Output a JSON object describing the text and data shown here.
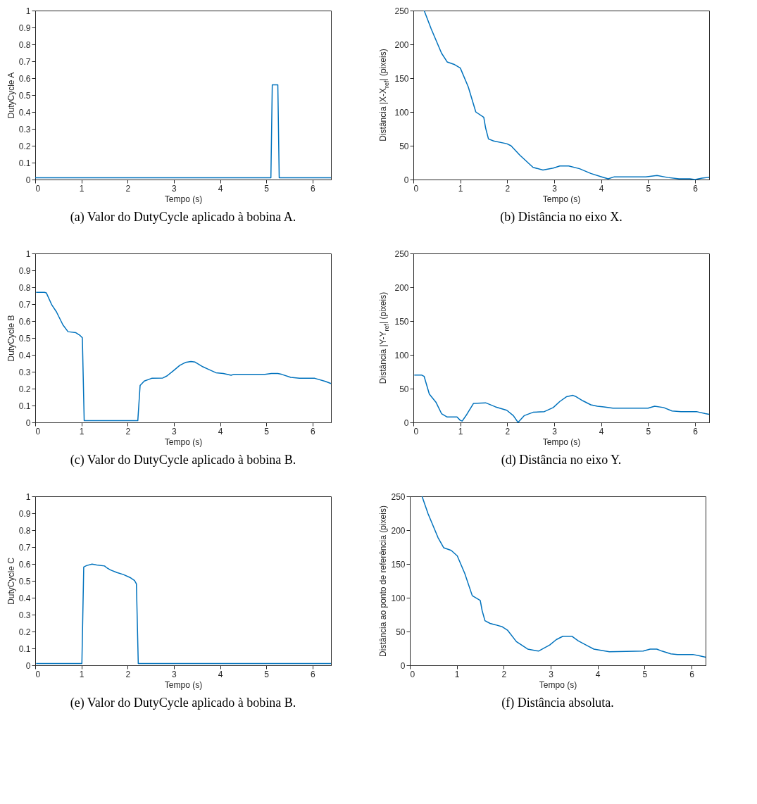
{
  "chart_data": [
    {
      "type": "line",
      "title": "(a) Valor do DutyCycle aplicado à bobina A.",
      "xlabel": "Tempo (s)",
      "ylabel": "DutyCycle A",
      "xlim": [
        0,
        6.4
      ],
      "ylim": [
        0,
        1
      ],
      "xticks": [
        0,
        1,
        2,
        3,
        4,
        5,
        6
      ],
      "yticks": [
        0,
        0.1,
        0.2,
        0.3,
        0.4,
        0.5,
        0.6,
        0.7,
        0.8,
        0.9,
        1
      ],
      "grid": false,
      "series": [
        {
          "color": "#0072bd",
          "x": [
            0,
            5.1,
            5.13,
            5.25,
            5.28,
            6.4
          ],
          "values": [
            0.01,
            0.01,
            0.56,
            0.56,
            0.01,
            0.01
          ]
        }
      ]
    },
    {
      "type": "line",
      "title": "(b) Distância no eixo X.",
      "xlabel": "Tempo (s)",
      "ylabel": "Distância |X-X$_{ref}$| (pixeis)",
      "xlim": [
        0,
        6.3
      ],
      "ylim": [
        0,
        250
      ],
      "xticks": [
        0,
        1,
        2,
        3,
        4,
        5,
        6
      ],
      "yticks": [
        0,
        50,
        100,
        150,
        200,
        250
      ],
      "grid": false,
      "series": [
        {
          "color": "#0072bd",
          "x": [
            0.23,
            0.38,
            0.6,
            0.72,
            0.88,
            1.0,
            1.17,
            1.33,
            1.5,
            1.54,
            1.6,
            1.71,
            1.99,
            2.08,
            2.27,
            2.55,
            2.76,
            2.98,
            3.12,
            3.31,
            3.54,
            3.78,
            4.01,
            4.15,
            4.28,
            4.95,
            5.19,
            5.42,
            5.66,
            5.89,
            6.0,
            6.15,
            6.27,
            6.3
          ],
          "values": [
            250,
            223,
            187,
            174,
            170,
            165,
            137,
            100,
            92,
            76,
            60,
            57,
            53,
            50,
            36,
            18,
            14,
            17,
            20,
            20,
            16,
            9,
            4,
            1,
            4,
            4,
            6,
            3,
            1,
            1,
            0,
            2,
            3,
            3
          ]
        }
      ]
    },
    {
      "type": "line",
      "title": "(c) Valor do DutyCycle aplicado à bobina B.",
      "xlabel": "Tempo (s)",
      "ylabel": "DutyCycle B",
      "xlim": [
        0,
        6.4
      ],
      "ylim": [
        0,
        1
      ],
      "xticks": [
        0,
        1,
        2,
        3,
        4,
        5,
        6
      ],
      "yticks": [
        0,
        0.1,
        0.2,
        0.3,
        0.4,
        0.5,
        0.6,
        0.7,
        0.8,
        0.9,
        1
      ],
      "grid": false,
      "series": [
        {
          "color": "#0072bd",
          "x": [
            0.02,
            0.2,
            0.24,
            0.36,
            0.46,
            0.6,
            0.71,
            0.88,
            0.97,
            1.02,
            1.06,
            2.22,
            2.27,
            2.36,
            2.52,
            2.76,
            2.85,
            2.99,
            3.13,
            3.25,
            3.37,
            3.46,
            3.63,
            3.75,
            3.91,
            4.07,
            4.24,
            4.29,
            4.97,
            5.11,
            5.25,
            5.34,
            5.53,
            5.72,
            6.05,
            6.28,
            6.4
          ],
          "values": [
            0.77,
            0.77,
            0.767,
            0.695,
            0.654,
            0.577,
            0.537,
            0.531,
            0.515,
            0.501,
            0.01,
            0.01,
            0.219,
            0.245,
            0.261,
            0.263,
            0.275,
            0.306,
            0.338,
            0.355,
            0.36,
            0.357,
            0.329,
            0.314,
            0.294,
            0.29,
            0.279,
            0.284,
            0.284,
            0.29,
            0.29,
            0.284,
            0.267,
            0.261,
            0.261,
            0.243,
            0.23
          ]
        }
      ]
    },
    {
      "type": "line",
      "title": "(d) Distância no eixo Y.",
      "xlabel": "Tempo (s)",
      "ylabel": "Distância |Y-Y$_{ref}$| (pixeis)",
      "xlim": [
        0,
        6.3
      ],
      "ylim": [
        0,
        250
      ],
      "xticks": [
        0,
        1,
        2,
        3,
        4,
        5,
        6
      ],
      "yticks": [
        0,
        50,
        100,
        150,
        200,
        250
      ],
      "grid": false,
      "series": [
        {
          "color": "#0072bd",
          "x": [
            0.02,
            0.18,
            0.23,
            0.34,
            0.48,
            0.6,
            0.72,
            0.81,
            0.93,
            1.0,
            1.04,
            1.14,
            1.28,
            1.54,
            1.75,
            1.99,
            2.13,
            2.23,
            2.36,
            2.55,
            2.79,
            2.98,
            3.12,
            3.26,
            3.4,
            3.47,
            3.61,
            3.78,
            3.92,
            4.06,
            4.25,
            5.0,
            5.14,
            5.33,
            5.51,
            5.7,
            6.03,
            6.22,
            6.3
          ],
          "values": [
            70,
            70,
            68,
            42,
            30,
            13,
            8,
            8,
            8,
            3,
            2,
            12,
            28,
            29,
            23,
            18,
            10,
            0,
            10,
            15,
            16,
            22,
            31,
            38,
            40,
            38,
            32,
            26,
            24,
            23,
            21,
            21,
            24,
            22,
            17,
            16,
            16,
            13,
            12
          ]
        }
      ]
    },
    {
      "type": "line",
      "title": "(e) Valor do DutyCycle aplicado à bobina B.",
      "xlabel": "Tempo (s)",
      "ylabel": "DutyCycle C",
      "xlim": [
        0,
        6.4
      ],
      "ylim": [
        0,
        1
      ],
      "xticks": [
        0,
        1,
        2,
        3,
        4,
        5,
        6
      ],
      "yticks": [
        0,
        0.1,
        0.2,
        0.3,
        0.4,
        0.5,
        0.6,
        0.7,
        0.8,
        0.9,
        1
      ],
      "grid": false,
      "series": [
        {
          "color": "#0072bd",
          "x": [
            0.02,
            1.01,
            1.05,
            1.11,
            1.23,
            1.33,
            1.5,
            1.54,
            1.63,
            1.77,
            1.91,
            2.05,
            2.15,
            2.19,
            2.23,
            6.4
          ],
          "values": [
            0.01,
            0.01,
            0.582,
            0.59,
            0.599,
            0.594,
            0.588,
            0.579,
            0.564,
            0.549,
            0.537,
            0.52,
            0.502,
            0.482,
            0.01,
            0.01
          ]
        }
      ]
    },
    {
      "type": "line",
      "title": "(f) Distância absoluta.",
      "xlabel": "Tempo (s)",
      "ylabel": "Distância ao ponto de referência (pixeis)",
      "xlim": [
        0,
        6.3
      ],
      "ylim": [
        0,
        250
      ],
      "xticks": [
        0,
        1,
        2,
        3,
        4,
        5,
        6
      ],
      "yticks": [
        0,
        50,
        100,
        150,
        200,
        250
      ],
      "grid": false,
      "series": [
        {
          "color": "#0072bd",
          "x": [
            0.26,
            0.39,
            0.6,
            0.72,
            0.88,
            1.01,
            1.17,
            1.33,
            1.5,
            1.54,
            1.6,
            1.71,
            1.82,
            1.97,
            2.08,
            2.27,
            2.51,
            2.74,
            2.98,
            3.12,
            3.26,
            3.45,
            3.59,
            3.78,
            3.92,
            4.25,
            4.97,
            5.12,
            5.26,
            5.37,
            5.56,
            5.7,
            6.03,
            6.17,
            6.3
          ],
          "values": [
            250,
            224,
            189,
            174,
            170,
            162,
            136,
            103,
            96,
            81,
            66,
            62,
            60,
            57,
            52,
            35,
            24,
            21,
            30,
            38,
            43,
            43,
            36,
            29,
            24,
            20,
            21,
            24,
            24,
            21,
            17,
            16,
            16,
            14,
            12
          ]
        }
      ]
    }
  ]
}
